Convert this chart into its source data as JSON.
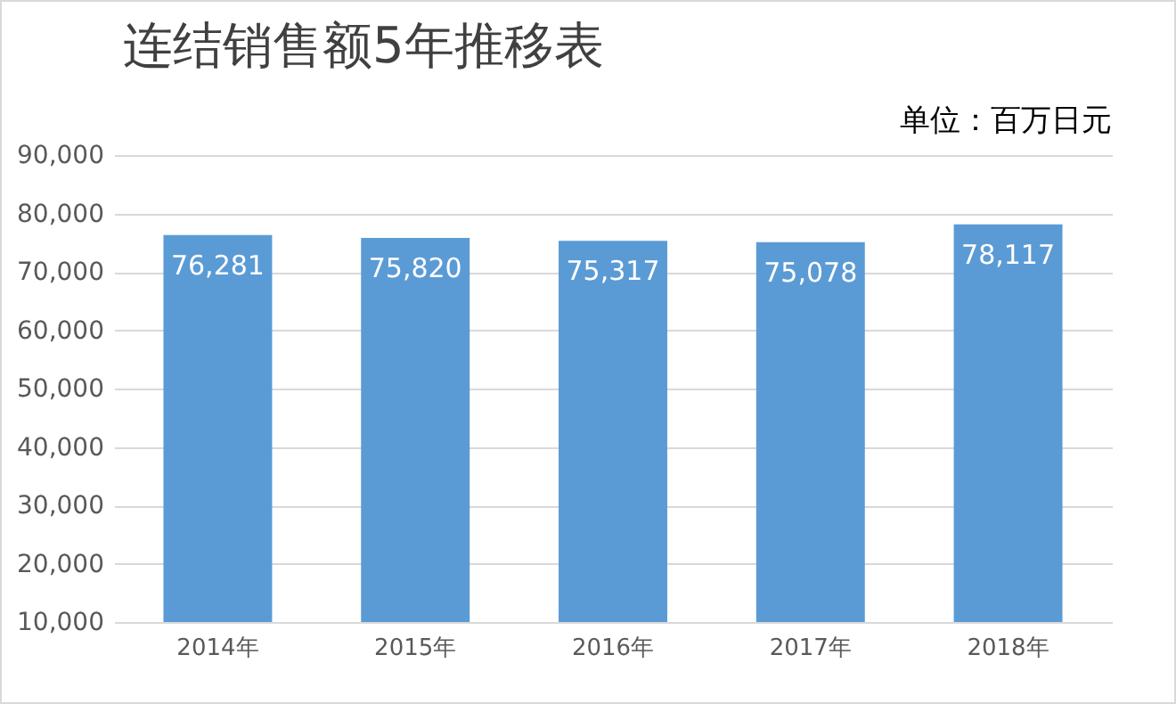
{
  "chart_data": {
    "type": "bar",
    "title": "连结销售额5年推移表",
    "subtitle": "单位：百万日元",
    "categories": [
      "2014年",
      "2015年",
      "2016年",
      "2017年",
      "2018年"
    ],
    "values": [
      76281,
      75820,
      75317,
      75078,
      78117
    ],
    "value_labels": [
      "76,281",
      "75,820",
      "75,317",
      "75,078",
      "78,117"
    ],
    "color": "#5b9bd5",
    "ylim": [
      10000,
      90000
    ],
    "yticks": [
      {
        "value": 10000,
        "label": "10,000"
      },
      {
        "value": 20000,
        "label": "20,000"
      },
      {
        "value": 30000,
        "label": "30,000"
      },
      {
        "value": 40000,
        "label": "40,000"
      },
      {
        "value": 50000,
        "label": "50,000"
      },
      {
        "value": 60000,
        "label": "60,000"
      },
      {
        "value": 70000,
        "label": "70,000"
      },
      {
        "value": 80000,
        "label": "80,000"
      },
      {
        "value": 90000,
        "label": "90,000"
      }
    ],
    "grid": "y"
  }
}
